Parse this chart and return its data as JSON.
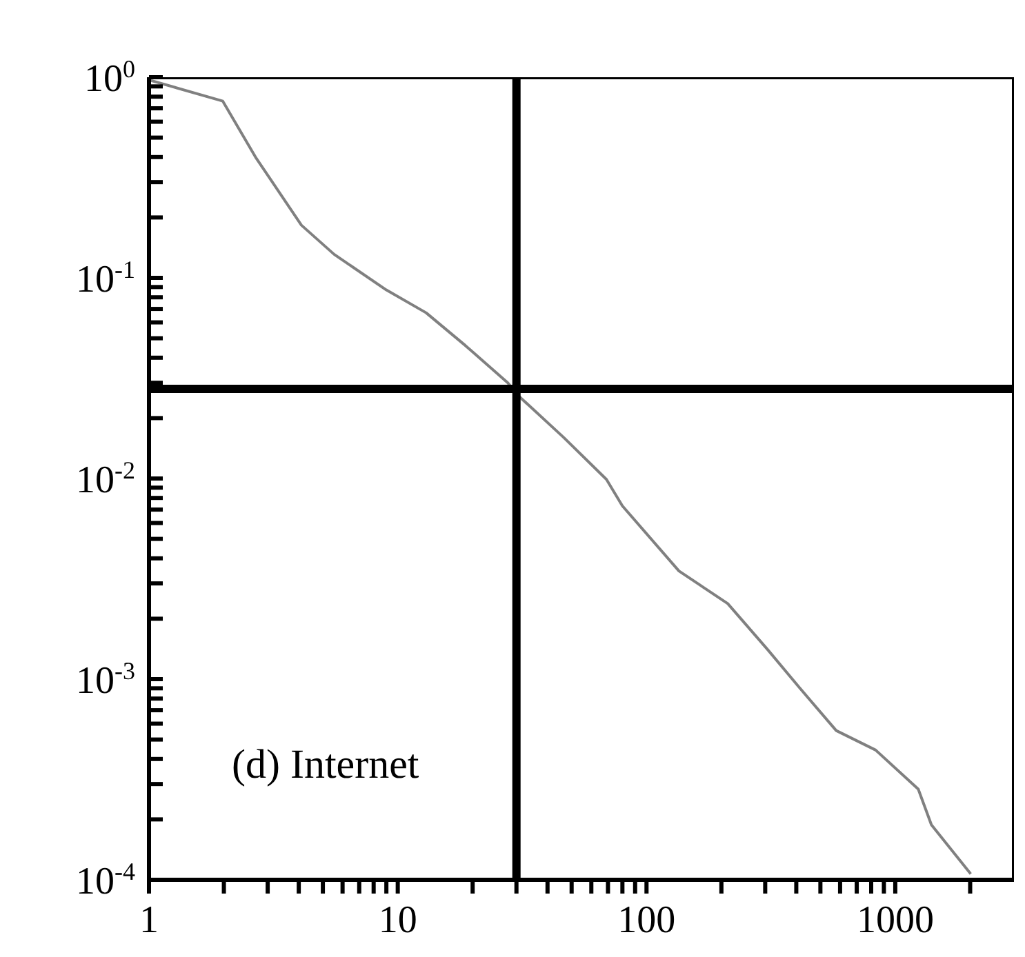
{
  "chart_data": {
    "type": "line",
    "log": "xy",
    "x": [
      1,
      1.98,
      2.68,
      4.1,
      5.55,
      9,
      13,
      18.7,
      27.7,
      30.4,
      46.5,
      69,
      80,
      135,
      212,
      306,
      414,
      579,
      834,
      1237,
      1397,
      2011
    ],
    "series": [
      {
        "color": "#808080",
        "values": [
          0.97,
          0.76,
          0.4,
          0.183,
          0.131,
          0.087,
          0.067,
          0.046,
          0.03,
          0.026,
          0.016,
          0.0099,
          0.0073,
          0.00346,
          0.00238,
          0.00141,
          0.0009,
          0.000554,
          0.000443,
          0.000283,
          0.000188,
          0.000107
        ]
      }
    ],
    "xlim": [
      1,
      3000
    ],
    "xticks": [
      {
        "value": 1,
        "label": "1"
      },
      {
        "value": 2,
        "label": null
      },
      {
        "value": 3,
        "label": null
      },
      {
        "value": 4,
        "label": null
      },
      {
        "value": 5,
        "label": null
      },
      {
        "value": 6,
        "label": null
      },
      {
        "value": 7,
        "label": null
      },
      {
        "value": 8,
        "label": null
      },
      {
        "value": 9,
        "label": null
      },
      {
        "value": 10,
        "label": "10"
      },
      {
        "value": 20,
        "label": null
      },
      {
        "value": 30,
        "label": null
      },
      {
        "value": 40,
        "label": null
      },
      {
        "value": 50,
        "label": null
      },
      {
        "value": 60,
        "label": null
      },
      {
        "value": 70,
        "label": null
      },
      {
        "value": 80,
        "label": null
      },
      {
        "value": 90,
        "label": null
      },
      {
        "value": 100,
        "label": "100"
      },
      {
        "value": 200,
        "label": null
      },
      {
        "value": 300,
        "label": null
      },
      {
        "value": 400,
        "label": null
      },
      {
        "value": 500,
        "label": null
      },
      {
        "value": 600,
        "label": null
      },
      {
        "value": 700,
        "label": null
      },
      {
        "value": 800,
        "label": null
      },
      {
        "value": 900,
        "label": null
      },
      {
        "value": 1000,
        "label": "1000"
      },
      {
        "value": 2000,
        "label": null
      }
    ],
    "ylim": [
      0.0001,
      1
    ],
    "yticks": [
      {
        "value": 0.0001,
        "label": "10$^{-4}$"
      },
      {
        "value": 0.0002,
        "label": null
      },
      {
        "value": 0.0003,
        "label": null
      },
      {
        "value": 0.0004,
        "label": null
      },
      {
        "value": 0.0005,
        "label": null
      },
      {
        "value": 0.0006,
        "label": null
      },
      {
        "value": 0.0007,
        "label": null
      },
      {
        "value": 0.0008,
        "label": null
      },
      {
        "value": 0.0009,
        "label": null
      },
      {
        "value": 0.001,
        "label": "10$^{-3}$"
      },
      {
        "value": 0.002,
        "label": null
      },
      {
        "value": 0.003,
        "label": null
      },
      {
        "value": 0.004,
        "label": null
      },
      {
        "value": 0.005,
        "label": null
      },
      {
        "value": 0.006,
        "label": null
      },
      {
        "value": 0.007,
        "label": null
      },
      {
        "value": 0.008,
        "label": null
      },
      {
        "value": 0.009,
        "label": null
      },
      {
        "value": 0.01,
        "label": "10$^{-2}$"
      },
      {
        "value": 0.02,
        "label": null
      },
      {
        "value": 0.03,
        "label": null
      },
      {
        "value": 0.04,
        "label": null
      },
      {
        "value": 0.05,
        "label": null
      },
      {
        "value": 0.06,
        "label": null
      },
      {
        "value": 0.07,
        "label": null
      },
      {
        "value": 0.08,
        "label": null
      },
      {
        "value": 0.09,
        "label": null
      },
      {
        "value": 0.1,
        "label": "10$^{-1}$"
      },
      {
        "value": 0.2,
        "label": null
      },
      {
        "value": 0.3,
        "label": null
      },
      {
        "value": 0.4,
        "label": null
      },
      {
        "value": 0.5,
        "label": null
      },
      {
        "value": 0.6,
        "label": null
      },
      {
        "value": 0.7,
        "label": null
      },
      {
        "value": 0.8,
        "label": null
      },
      {
        "value": 0.9,
        "label": null
      },
      {
        "value": 1,
        "label": "10$^{0}$"
      }
    ],
    "ref_lines": [
      {
        "axis": "x",
        "value": 30,
        "color": "#000000"
      },
      {
        "axis": "y",
        "value": 0.028,
        "color": "#000000"
      }
    ],
    "annotations": [
      "(d) Internet"
    ],
    "grid": false,
    "legend": false,
    "marker": "none",
    "line_style": "solid"
  }
}
